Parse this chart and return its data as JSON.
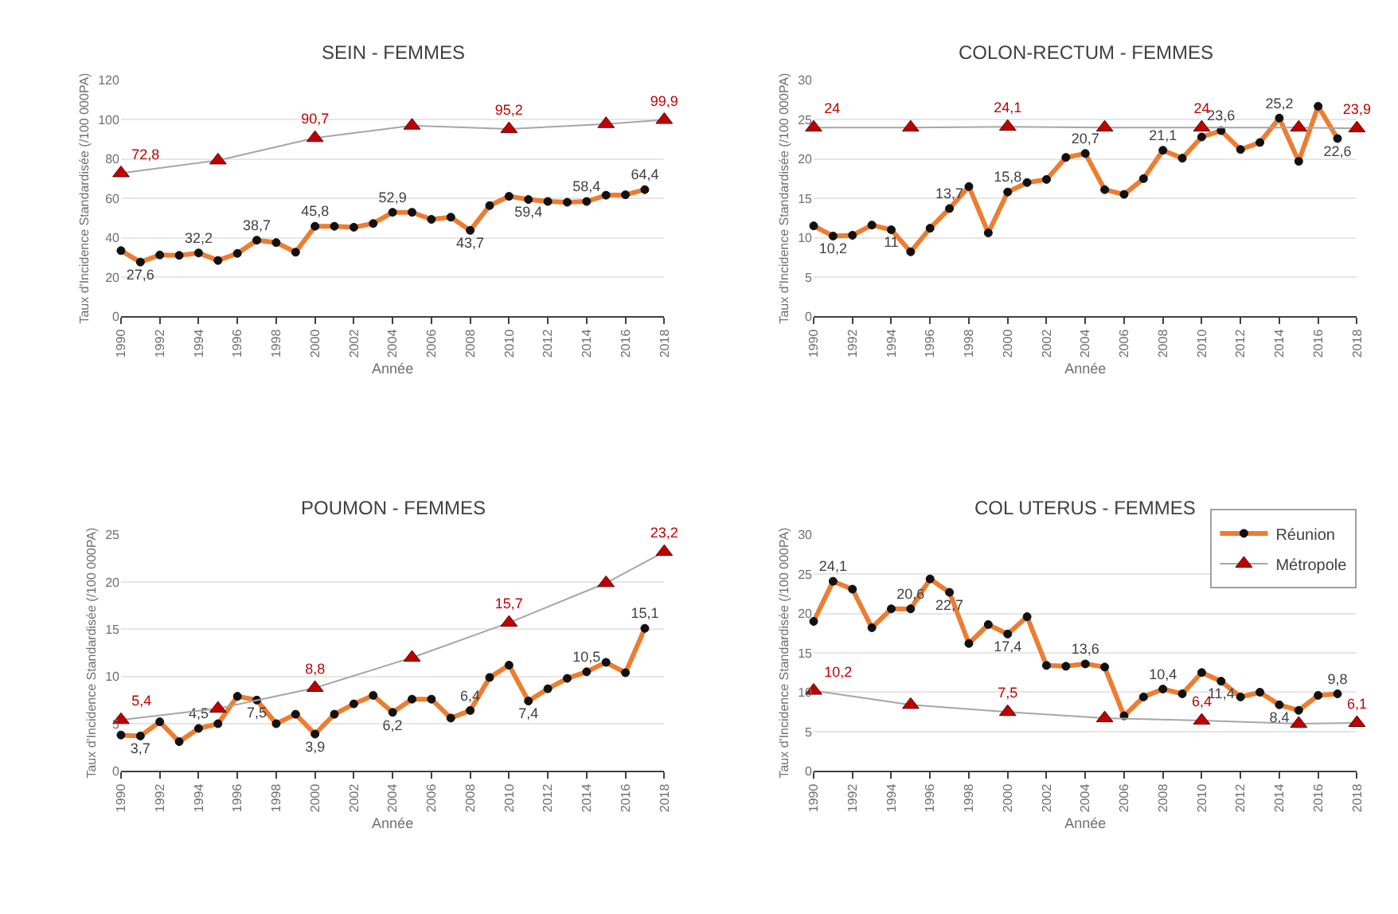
{
  "chart_data": [
    {
      "type": "line",
      "title": "SEIN - FEMMES",
      "xlabel": "Année",
      "ylabel": "Taux d'Incidence Standardisée (/100 000PA)",
      "xlim": [
        1990,
        2018
      ],
      "xticks": [
        1990,
        1992,
        1994,
        1996,
        1998,
        2000,
        2002,
        2004,
        2006,
        2008,
        2010,
        2012,
        2014,
        2016,
        2018
      ],
      "ylim": [
        0,
        120
      ],
      "yticks": [
        0,
        20,
        40,
        60,
        80,
        100,
        120
      ],
      "grid": "y",
      "legend": false,
      "series": [
        {
          "color": "#ed7d31",
          "marker": "circle",
          "x": [
            1990,
            1991,
            1992,
            1993,
            1994,
            1995,
            1996,
            1997,
            1998,
            1999,
            2000,
            2001,
            2002,
            2003,
            2004,
            2005,
            2006,
            2007,
            2008,
            2009,
            2010,
            2011,
            2012,
            2013,
            2014,
            2015,
            2016,
            2017
          ],
          "values": [
            33.4,
            27.6,
            31.2,
            31,
            32.2,
            28.4,
            32,
            38.7,
            37.5,
            32.6,
            45.8,
            45.8,
            45.3,
            47.2,
            52.9,
            52.9,
            49.3,
            50.4,
            43.7,
            56.3,
            61,
            59.4,
            58.4,
            58,
            58.4,
            61.6,
            61.8,
            64.4
          ],
          "value_labels": [
            null,
            "27,6",
            null,
            null,
            "32,2",
            null,
            null,
            "38,7",
            null,
            null,
            "45,8",
            null,
            null,
            null,
            "52,9",
            null,
            null,
            null,
            "43,7",
            null,
            null,
            "59,4",
            null,
            null,
            "58,4",
            null,
            null,
            "64,4"
          ]
        },
        {
          "color": "#c00000",
          "marker": "triangle",
          "x": [
            1990,
            1995,
            2000,
            2005,
            2010,
            2015,
            2018
          ],
          "values": [
            72.8,
            79.3,
            90.7,
            97,
            95.2,
            97.8,
            99.9
          ],
          "value_labels": [
            "72,8",
            null,
            "90,7",
            null,
            "95,2",
            null,
            "99,9"
          ]
        }
      ]
    },
    {
      "type": "line",
      "title": "COLON-RECTUM - FEMMES",
      "xlabel": "Année",
      "ylabel": "Taux d'Incidence Standardisée (/100 000PA)",
      "xlim": [
        1990,
        2018
      ],
      "xticks": [
        1990,
        1992,
        1994,
        1996,
        1998,
        2000,
        2002,
        2004,
        2006,
        2008,
        2010,
        2012,
        2014,
        2016,
        2018
      ],
      "ylim": [
        0,
        30
      ],
      "yticks": [
        0,
        5,
        10,
        15,
        20,
        25,
        30
      ],
      "grid": "y",
      "legend": false,
      "series": [
        {
          "color": "#ed7d31",
          "marker": "circle",
          "x": [
            1990,
            1991,
            1992,
            1993,
            1994,
            1995,
            1996,
            1997,
            1998,
            1999,
            2000,
            2001,
            2002,
            2003,
            2004,
            2005,
            2006,
            2007,
            2008,
            2009,
            2010,
            2011,
            2012,
            2013,
            2014,
            2015,
            2016,
            2017
          ],
          "values": [
            11.5,
            10.2,
            10.3,
            11.6,
            11,
            8.2,
            11.2,
            13.7,
            16.5,
            10.6,
            15.8,
            17,
            17.4,
            20.2,
            20.7,
            16.1,
            15.5,
            17.5,
            21.1,
            20.1,
            22.8,
            23.6,
            21.2,
            22.1,
            25.2,
            19.7,
            26.7,
            22.6
          ],
          "value_labels": [
            null,
            "10,2",
            null,
            null,
            "11",
            null,
            null,
            "13,7",
            null,
            null,
            "15,8",
            null,
            null,
            null,
            "20,7",
            null,
            null,
            null,
            "21,1",
            null,
            null,
            "23,6",
            null,
            null,
            "25,2",
            null,
            null,
            "22,6"
          ]
        },
        {
          "color": "#c00000",
          "marker": "triangle",
          "x": [
            1990,
            1995,
            2000,
            2005,
            2010,
            2015,
            2018
          ],
          "values": [
            24,
            24,
            24.1,
            24,
            24,
            24,
            23.9
          ],
          "value_labels": [
            "24",
            null,
            "24,1",
            null,
            "24",
            null,
            "23,9"
          ]
        }
      ]
    },
    {
      "type": "line",
      "title": "POUMON - FEMMES",
      "xlabel": "Année",
      "ylabel": "Taux d'Incidence Standardisée (/100 000PA)",
      "xlim": [
        1990,
        2018
      ],
      "xticks": [
        1990,
        1992,
        1994,
        1996,
        1998,
        2000,
        2002,
        2004,
        2006,
        2008,
        2010,
        2012,
        2014,
        2016,
        2018
      ],
      "ylim": [
        0,
        25
      ],
      "yticks": [
        0,
        5,
        10,
        15,
        20,
        25
      ],
      "grid": "y",
      "legend": false,
      "series": [
        {
          "color": "#ed7d31",
          "marker": "circle",
          "x": [
            1990,
            1991,
            1992,
            1993,
            1994,
            1995,
            1996,
            1997,
            1998,
            1999,
            2000,
            2001,
            2002,
            2003,
            2004,
            2005,
            2006,
            2007,
            2008,
            2009,
            2010,
            2011,
            2012,
            2013,
            2014,
            2015,
            2016,
            2017
          ],
          "values": [
            3.8,
            3.7,
            5.2,
            3.1,
            4.5,
            5.0,
            7.9,
            7.5,
            5.0,
            6.0,
            3.9,
            6.0,
            7.1,
            8.0,
            6.2,
            7.6,
            7.6,
            5.6,
            6.4,
            9.9,
            11.2,
            7.4,
            8.7,
            9.8,
            10.5,
            11.5,
            10.4,
            15.1
          ],
          "value_labels": [
            null,
            "3,7",
            null,
            null,
            "4,5",
            null,
            null,
            "7,5",
            null,
            null,
            "3,9",
            null,
            null,
            null,
            "6,2",
            null,
            null,
            null,
            "6,4",
            null,
            null,
            "7,4",
            null,
            null,
            "10,5",
            null,
            null,
            "15,1"
          ]
        },
        {
          "color": "#c00000",
          "marker": "triangle",
          "x": [
            1990,
            1995,
            2000,
            2005,
            2010,
            2015,
            2018
          ],
          "values": [
            5.4,
            6.6,
            8.8,
            12.0,
            15.7,
            19.9,
            23.2
          ],
          "value_labels": [
            "5,4",
            null,
            "8,8",
            null,
            "15,7",
            null,
            "23,2"
          ]
        }
      ]
    },
    {
      "type": "line",
      "title": "COL UTERUS - FEMMES",
      "xlabel": "Année",
      "ylabel": "Taux d'Incidence Standardisée (/100 000PA)",
      "xlim": [
        1990,
        2018
      ],
      "xticks": [
        1990,
        1992,
        1994,
        1996,
        1998,
        2000,
        2002,
        2004,
        2006,
        2008,
        2010,
        2012,
        2014,
        2016,
        2018
      ],
      "ylim": [
        0,
        30
      ],
      "yticks": [
        0,
        5,
        10,
        15,
        20,
        25,
        30
      ],
      "grid": "y",
      "legend": "top right",
      "series": [
        {
          "name": "Réunion",
          "color": "#ed7d31",
          "marker": "circle",
          "x": [
            1990,
            1991,
            1992,
            1993,
            1994,
            1995,
            1996,
            1997,
            1998,
            1999,
            2000,
            2001,
            2002,
            2003,
            2004,
            2005,
            2006,
            2007,
            2008,
            2009,
            2010,
            2011,
            2012,
            2013,
            2014,
            2015,
            2016,
            2017
          ],
          "values": [
            19.0,
            24.1,
            23.1,
            18.2,
            20.6,
            20.6,
            24.4,
            22.7,
            16.2,
            18.6,
            17.4,
            19.6,
            13.4,
            13.3,
            13.6,
            13.2,
            7.0,
            9.4,
            10.4,
            9.8,
            12.5,
            11.4,
            9.4,
            10.0,
            8.4,
            7.7,
            9.6,
            9.8
          ],
          "value_labels": [
            null,
            "24,1",
            null,
            null,
            null,
            "20,6",
            null,
            "22,7",
            null,
            null,
            "17,4",
            null,
            null,
            null,
            "13,6",
            null,
            null,
            null,
            "10,4",
            null,
            null,
            "11,4",
            null,
            null,
            "8,4",
            null,
            null,
            "9,8"
          ]
        },
        {
          "name": "Métropole",
          "color": "#c00000",
          "marker": "triangle",
          "x": [
            1990,
            1995,
            2000,
            2005,
            2010,
            2015,
            2018
          ],
          "values": [
            10.2,
            8.4,
            7.5,
            6.7,
            6.4,
            6.0,
            6.1
          ],
          "value_labels": [
            "10,2",
            null,
            "7,5",
            null,
            "6,4",
            null,
            "6,1"
          ]
        }
      ]
    }
  ]
}
